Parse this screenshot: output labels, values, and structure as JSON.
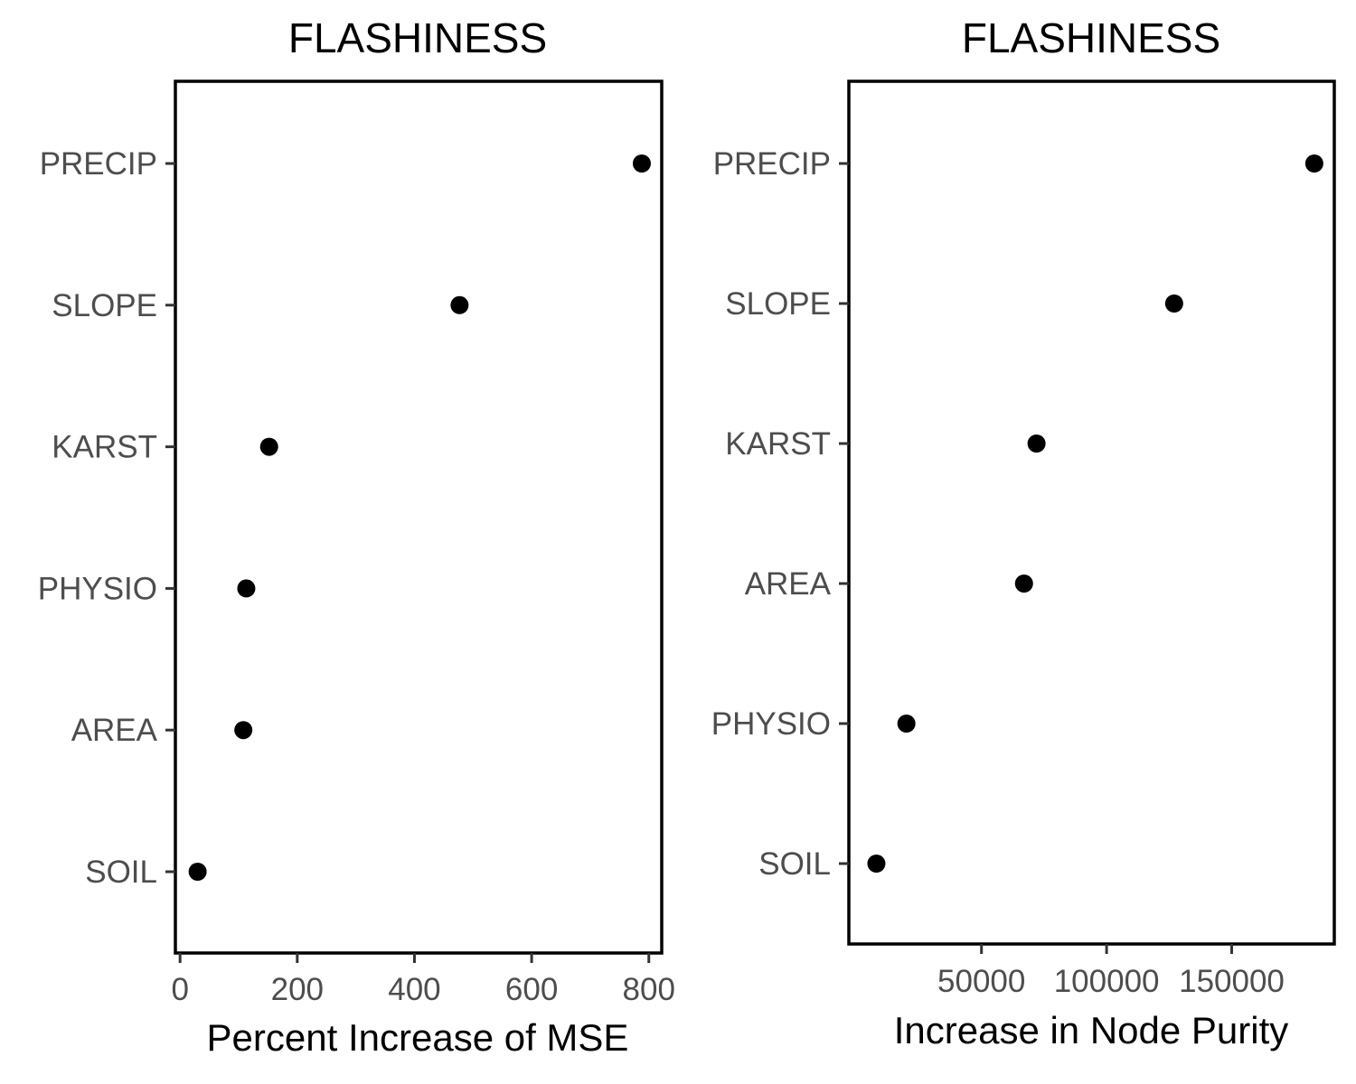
{
  "chart_data": [
    {
      "type": "scatter",
      "title": "FLASHINESS",
      "xlabel": "Percent Increase of MSE",
      "ylabel": "",
      "categories": [
        "SOIL",
        "AREA",
        "PHYSIO",
        "KARST",
        "SLOPE",
        "PRECIP"
      ],
      "values": [
        30,
        108,
        113,
        152,
        477,
        788
      ],
      "xlim": [
        -8,
        822
      ],
      "xticks": [
        0,
        200,
        400,
        600,
        800
      ],
      "xtick_labels": [
        "0",
        "200",
        "400",
        "600",
        "800"
      ],
      "grid": false,
      "point_color": "#000000"
    },
    {
      "type": "scatter",
      "title": "FLASHINESS",
      "xlabel": "Increase in Node Purity",
      "ylabel": "",
      "categories": [
        "SOIL",
        "PHYSIO",
        "AREA",
        "KARST",
        "SLOPE",
        "PRECIP"
      ],
      "values": [
        8000,
        20000,
        67000,
        72000,
        127000,
        183000
      ],
      "xlim": [
        -3000,
        191000
      ],
      "xticks": [
        50000,
        100000,
        150000
      ],
      "xtick_labels": [
        "50000",
        "100000",
        "150000"
      ],
      "grid": false,
      "point_color": "#000000"
    }
  ]
}
